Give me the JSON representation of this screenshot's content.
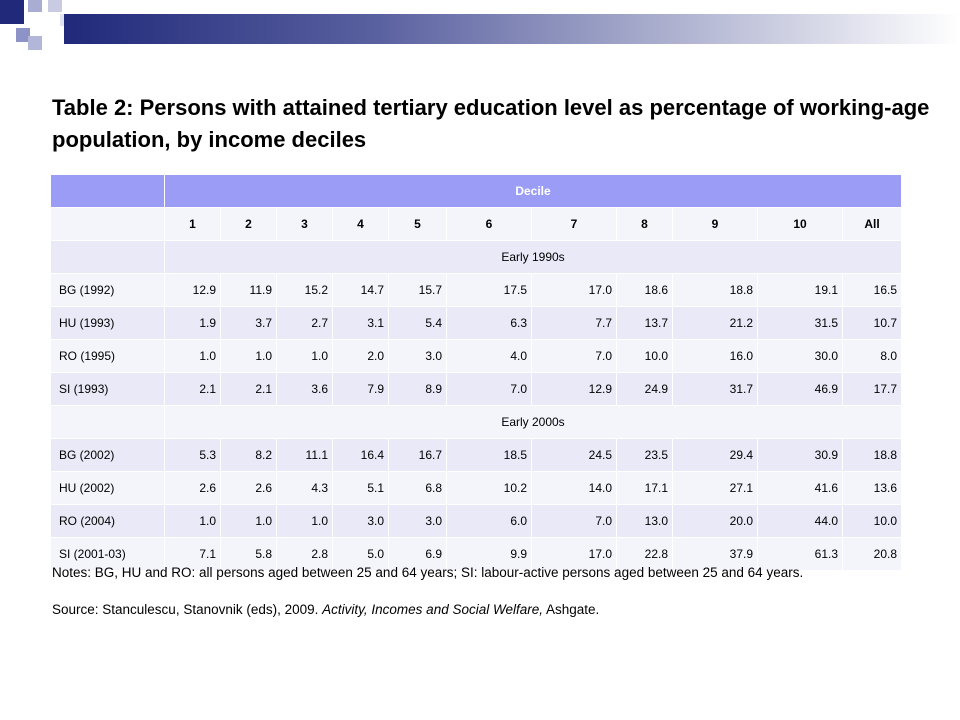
{
  "slide": {
    "title": "Table 2: Persons with attained tertiary education level as percentage of working-age population, by income deciles",
    "notes": "Notes: BG, HU and RO: all persons aged between 25 and 64 years; SI: labour-active persons aged between 25 and 64 years.",
    "source_prefix": "Source: Stanculescu, Stanovnik (eds), 2009. ",
    "source_book": "Activity, Incomes and Social Welfare,",
    "source_suffix": " Ashgate."
  },
  "table": {
    "decile_header": "Decile",
    "columns": [
      "1",
      "2",
      "3",
      "4",
      "5",
      "6",
      "7",
      "8",
      "9",
      "10",
      "All"
    ],
    "sections": [
      {
        "period": "Early 1990s",
        "rows": [
          {
            "label": "BG (1992)",
            "values": [
              "12.9",
              "11.9",
              "15.2",
              "14.7",
              "15.7",
              "17.5",
              "17.0",
              "18.6",
              "18.8",
              "19.1",
              "16.5"
            ]
          },
          {
            "label": "HU (1993)",
            "values": [
              "1.9",
              "3.7",
              "2.7",
              "3.1",
              "5.4",
              "6.3",
              "7.7",
              "13.7",
              "21.2",
              "31.5",
              "10.7"
            ]
          },
          {
            "label": "RO (1995)",
            "values": [
              "1.0",
              "1.0",
              "1.0",
              "2.0",
              "3.0",
              "4.0",
              "7.0",
              "10.0",
              "16.0",
              "30.0",
              "8.0"
            ]
          },
          {
            "label": "SI (1993)",
            "values": [
              "2.1",
              "2.1",
              "3.6",
              "7.9",
              "8.9",
              "7.0",
              "12.9",
              "24.9",
              "31.7",
              "46.9",
              "17.7"
            ]
          }
        ]
      },
      {
        "period": "Early 2000s",
        "rows": [
          {
            "label": "BG (2002)",
            "values": [
              "5.3",
              "8.2",
              "11.1",
              "16.4",
              "16.7",
              "18.5",
              "24.5",
              "23.5",
              "29.4",
              "30.9",
              "18.8"
            ]
          },
          {
            "label": "HU (2002)",
            "values": [
              "2.6",
              "2.6",
              "4.3",
              "5.1",
              "6.8",
              "10.2",
              "14.0",
              "17.1",
              "27.1",
              "41.6",
              "13.6"
            ]
          },
          {
            "label": "RO (2004)",
            "values": [
              "1.0",
              "1.0",
              "1.0",
              "3.0",
              "3.0",
              "6.0",
              "7.0",
              "13.0",
              "20.0",
              "44.0",
              "10.0"
            ]
          },
          {
            "label": "SI (2001-03)",
            "values": [
              "7.1",
              "5.8",
              "2.8",
              "5.0",
              "6.9",
              "9.9",
              "17.0",
              "22.8",
              "37.9",
              "61.3",
              "20.8"
            ]
          }
        ]
      }
    ]
  }
}
